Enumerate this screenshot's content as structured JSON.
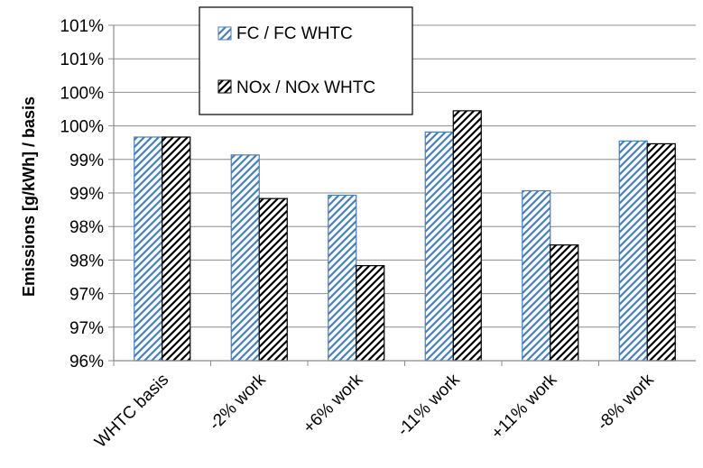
{
  "chart_data": {
    "type": "bar",
    "categories": [
      "WHTC basis",
      "-2% work",
      "+6% work",
      "-11% work",
      "+11% work",
      "-8% work"
    ],
    "series": [
      {
        "name": "FC / FC WHTC",
        "values": [
          100.0,
          99.68,
          98.96,
          100.09,
          99.04,
          99.93
        ],
        "color": "#4a7ebb",
        "pattern": "hatch-blue"
      },
      {
        "name": "NOx / NOx WHTC",
        "values": [
          100.0,
          98.9,
          97.7,
          100.47,
          98.07,
          99.88
        ],
        "color": "#000000",
        "pattern": "hatch-black"
      }
    ],
    "ylabel": "Emissions [g/kWh] / basis",
    "ylim": [
      96,
      102
    ],
    "yticks": [
      "96%",
      "97%",
      "97%",
      "98%",
      "98%",
      "99%",
      "99%",
      "100%",
      "100%",
      "101%",
      "101%"
    ],
    "grid": true,
    "legend_position": "top"
  }
}
